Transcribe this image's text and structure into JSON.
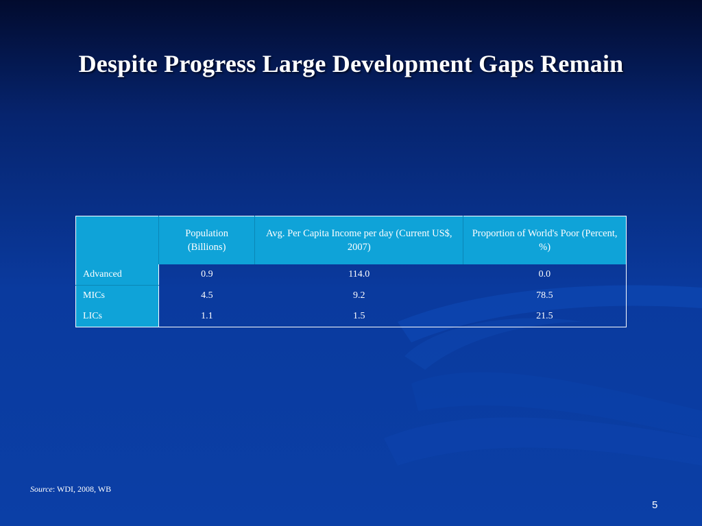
{
  "slide": {
    "title": "Despite Progress Large Development Gaps Remain",
    "page_number": "5"
  },
  "table": {
    "headers": [
      "",
      "Population (Billions)",
      "Avg. Per Capita Income per day (Current US$, 2007)",
      "Proportion of World's Poor (Percent, %)"
    ],
    "rows": [
      [
        "Advanced",
        "0.9",
        "114.0",
        "0.0"
      ],
      [
        "MICs",
        "4.5",
        "9.2",
        "78.5"
      ],
      [
        "LICs",
        "1.1",
        "1.5",
        "21.5"
      ]
    ]
  },
  "source": {
    "label": "Source",
    "text": ": WDI, 2008, WB"
  },
  "colors": {
    "background_top": "#020b2e",
    "background_bottom": "#0b3fa6",
    "table_accent": "#0fa3d8"
  }
}
